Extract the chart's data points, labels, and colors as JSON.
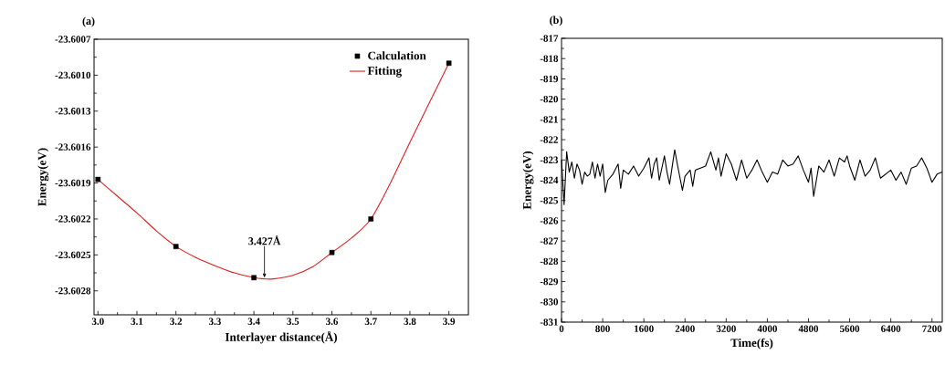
{
  "chart_data": [
    {
      "type": "scatter",
      "title": "(a)",
      "xlabel": "Interlayer distance(Å)",
      "ylabel": "Energy(eV)",
      "xlim": [
        2.99,
        3.95
      ],
      "ylim": [
        -23.603,
        -23.6007
      ],
      "xticks": [
        {
          "value": 3,
          "label": "3.0"
        },
        3.1,
        3.2,
        3.3,
        3.4,
        3.5,
        3.6,
        3.7,
        3.8,
        3.9
      ],
      "yticks": [
        -23.6007,
        {
          "value": -23.601,
          "label": "-23.6010"
        },
        -23.6013,
        -23.6016,
        -23.6019,
        -23.6022,
        -23.6025,
        -23.6028
      ],
      "legend": "top right",
      "annotations": [
        {
          "text": "3.427Å",
          "x": 3.427,
          "y": -23.6027
        }
      ],
      "series": [
        {
          "name": "Calculation",
          "marker": "square",
          "color": "#000000",
          "x": [
            3.0,
            3.2,
            3.4,
            3.6,
            3.7,
            3.9
          ],
          "values": [
            -23.60187,
            -23.60243,
            -23.60269,
            -23.60248,
            -23.6022,
            -23.6009
          ]
        },
        {
          "name": "Fitting",
          "type": "line",
          "color": "#e02020",
          "x": [
            3.0,
            3.05,
            3.1,
            3.15,
            3.2,
            3.25,
            3.3,
            3.35,
            3.4,
            3.427,
            3.45,
            3.5,
            3.55,
            3.6,
            3.65,
            3.7,
            3.75,
            3.8,
            3.85,
            3.9
          ],
          "values": [
            -23.60187,
            -23.60201,
            -23.60215,
            -23.6023,
            -23.60243,
            -23.60252,
            -23.60259,
            -23.60265,
            -23.60269,
            -23.6027,
            -23.6027,
            -23.60267,
            -23.6026,
            -23.60248,
            -23.60236,
            -23.6022,
            -23.6019,
            -23.60156,
            -23.60123,
            -23.6009
          ]
        }
      ]
    },
    {
      "type": "line",
      "title": "(b)",
      "xlabel": "Time(fs)",
      "ylabel": "Energy(eV)",
      "xlim": [
        0,
        7400
      ],
      "ylim": [
        -831,
        -817
      ],
      "xticks": [
        0,
        800,
        1600,
        2400,
        3200,
        4000,
        4800,
        5600,
        6400,
        7200
      ],
      "yticks": [
        -831,
        -830,
        -829,
        -828,
        -827,
        -826,
        -825,
        -824,
        -823,
        -822,
        -821,
        -820,
        -819,
        -818,
        -817
      ],
      "series": [
        {
          "color": "#000000",
          "x": [
            0,
            50,
            100,
            150,
            200,
            250,
            300,
            350,
            400,
            450,
            500,
            550,
            600,
            650,
            700,
            750,
            800,
            850,
            900,
            1000,
            1100,
            1150,
            1200,
            1300,
            1400,
            1500,
            1600,
            1700,
            1750,
            1800,
            1850,
            1900,
            2000,
            2050,
            2100,
            2200,
            2250,
            2350,
            2400,
            2500,
            2550,
            2600,
            2700,
            2800,
            2900,
            3000,
            3050,
            3100,
            3200,
            3300,
            3400,
            3500,
            3600,
            3700,
            3800,
            3900,
            4000,
            4100,
            4200,
            4300,
            4400,
            4500,
            4600,
            4700,
            4800,
            4850,
            4900,
            5000,
            5100,
            5200,
            5300,
            5400,
            5500,
            5550,
            5600,
            5700,
            5800,
            5900,
            6000,
            6100,
            6200,
            6300,
            6400,
            6500,
            6600,
            6700,
            6800,
            6900,
            7000,
            7100,
            7200,
            7300,
            7400
          ],
          "values": [
            -823.0,
            -825.2,
            -822.6,
            -823.6,
            -823.1,
            -823.9,
            -823.2,
            -823.5,
            -824.2,
            -823.6,
            -823.8,
            -823.7,
            -823.1,
            -823.9,
            -823.2,
            -823.8,
            -823.2,
            -824.6,
            -824.0,
            -823.7,
            -823.2,
            -824.4,
            -823.5,
            -823.7,
            -823.3,
            -823.8,
            -823.4,
            -822.9,
            -823.9,
            -823.2,
            -822.9,
            -824.0,
            -822.8,
            -823.6,
            -824.2,
            -822.5,
            -823.2,
            -824.5,
            -823.8,
            -823.5,
            -824.3,
            -823.5,
            -823.4,
            -823.3,
            -822.6,
            -823.5,
            -822.9,
            -823.8,
            -822.7,
            -823.2,
            -824.0,
            -823.0,
            -823.9,
            -823.5,
            -823.0,
            -823.6,
            -824.1,
            -823.6,
            -823.7,
            -823.0,
            -823.3,
            -823.2,
            -822.8,
            -823.5,
            -824.1,
            -823.4,
            -824.8,
            -823.3,
            -823.6,
            -823.0,
            -823.8,
            -822.9,
            -823.1,
            -822.8,
            -823.3,
            -824.0,
            -823.0,
            -823.8,
            -823.5,
            -822.9,
            -823.9,
            -823.7,
            -823.5,
            -824.0,
            -823.6,
            -824.2,
            -823.4,
            -823.3,
            -822.9,
            -823.4,
            -824.1,
            -823.7,
            -823.6
          ]
        }
      ]
    }
  ]
}
